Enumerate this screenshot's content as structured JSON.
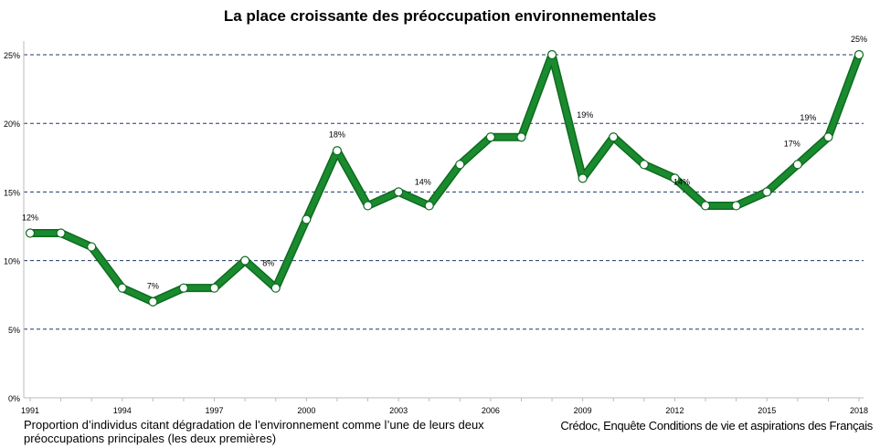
{
  "chart_data": {
    "type": "line",
    "title": "La place croissante des préoccupation environnementales",
    "x": [
      1991,
      1992,
      1993,
      1994,
      1995,
      1996,
      1997,
      1998,
      1999,
      2000,
      2001,
      2002,
      2003,
      2004,
      2005,
      2006,
      2007,
      2008,
      2009,
      2010,
      2011,
      2012,
      2013,
      2014,
      2015,
      2016,
      2017,
      2018
    ],
    "series": [
      {
        "values": [
          12,
          12,
          11,
          8,
          7,
          8,
          8,
          10,
          8,
          13,
          18,
          14,
          15,
          14,
          17,
          19,
          19,
          25,
          16,
          19,
          17,
          16,
          14,
          14,
          15,
          17,
          19,
          25
        ]
      }
    ],
    "xticks": [
      "1991",
      "1994",
      "1997",
      "2000",
      "2003",
      "2006",
      "2009",
      "2012",
      "2015",
      "2018"
    ],
    "yticks": [
      "0%",
      "5%",
      "10%",
      "15%",
      "20%",
      "25%"
    ],
    "ylim": [
      0,
      25
    ],
    "grid": "horizontal dashed",
    "data_labels": [
      {
        "year": 1991,
        "text": "12%"
      },
      {
        "year": 1995,
        "text": "7%"
      },
      {
        "year": 1999,
        "text": "8%"
      },
      {
        "year": 2001,
        "text": "18%"
      },
      {
        "year": 2004,
        "text": "14%"
      },
      {
        "year": 2010,
        "text": "19%"
      },
      {
        "year": 2013,
        "text": "14%"
      },
      {
        "year": 2016,
        "text": "17%"
      },
      {
        "year": 2017,
        "text": "19%"
      },
      {
        "year": 2018,
        "text": "25%"
      }
    ],
    "xlabel": "Proportion d’individus citant dégradation de l’environnement comme l’une de leurs deux préoccupations principales (les deux premières)",
    "source": "Crédoc, Enquête Conditions de vie et aspirations des Français",
    "colors": {
      "line": "#1a8a2e",
      "grid": "#1f3864",
      "marker_fill": "#ffffff"
    }
  }
}
